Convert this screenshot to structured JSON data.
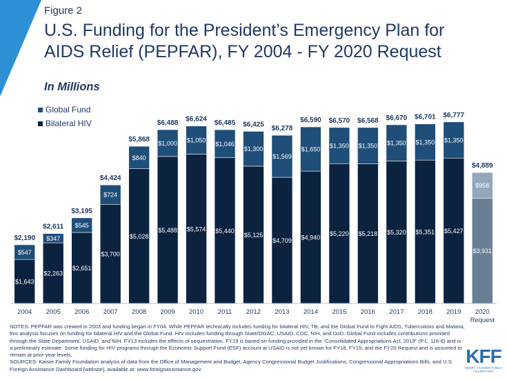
{
  "figure_label": "Figure 2",
  "title": "U.S. Funding for the President’s Emergency Plan for AIDS Relief (PEPFAR), FY 2004 - FY 2020 Request",
  "subtitle": "In Millions",
  "notes": "NOTES:  PEPFAR  was created in 2003 and funding began in FY04. While PEPFAR  technically includes funding for bilateral HIV, TB, and the Global Fund to Fight AIDS, Tuberculosis and Malaria, this analysis focuses on funding for bilateral HIV and the Global Fund. HIV includes funding through State/OGAC, USAID, CDC, NIH, and DoD. Global Fund includes contributions provided through the State Department, USAID, and NIH. FY13 includes the effects of sequestration. FY19 is based on funding provided in the “Consolidated Appropriations Act, 2019” (P.L. 116-6) and is a preliminary estimate. Some funding for HIV programs through the Economic Support Fund (ESF) account at USAID is not yet known for FY18, FY19, and the FY20 Request and is assumed to remain at prior year levels.",
  "sources": "SOURCES:  Kaiser Family Foundation analysis of data from the Office of Management and Budget, Agency Congressional Budget Justifications, Congressional Appropriations Bills, and U.S. Foreign Assistance Dashboard [website], available at: www.foreignassistance.gov.",
  "logo": {
    "mark": "KFF",
    "subtext": "HENRY J KAISER FAMILY FOUNDATION"
  },
  "colors": {
    "bilateral": "#0c2340",
    "global_fund": "#1f4e79",
    "request_bilateral": "#6a7f93",
    "request_global_fund": "#93a7bb",
    "axis": "#bfbfbf",
    "text": "#1f3864",
    "accent": "#2d8fd6"
  },
  "chart_data": {
    "type": "bar",
    "stacked": true,
    "categories": [
      "2004",
      "2005",
      "2006",
      "2007",
      "2008",
      "2009",
      "2010",
      "2011",
      "2012",
      "2013",
      "2014",
      "2015",
      "2016",
      "2017",
      "2018",
      "2019",
      "2020 Request"
    ],
    "series": [
      {
        "name": "Bilateral HIV",
        "values": [
          1643,
          2263,
          2651,
          3700,
          5028,
          5488,
          5574,
          5440,
          5125,
          4709,
          4940,
          5220,
          5218,
          5320,
          5351,
          5427,
          3931
        ],
        "labels": [
          "$1,643",
          "$2,263",
          "$2,651",
          "$3,700",
          "$5,028",
          "$5,488",
          "$5,574",
          "$5,440",
          "$5,125",
          "$4,709",
          "$4,940",
          "$5,220",
          "$5,218",
          "$5,320",
          "$5,351",
          "$5,427",
          "$3,931"
        ]
      },
      {
        "name": "Global Fund",
        "values": [
          547,
          347,
          545,
          724,
          840,
          1000,
          1050,
          1046,
          1300,
          1569,
          1650,
          1350,
          1350,
          1350,
          1350,
          1350,
          958
        ],
        "labels": [
          "$547",
          "$347",
          "$545",
          "$724",
          "$840",
          "$1,000",
          "$1,050",
          "$1,046",
          "$1,300",
          "$1,569",
          "$1,650",
          "$1,350",
          "$1,350",
          "$1,350",
          "$1,350",
          "$1,350",
          "$958"
        ]
      }
    ],
    "totals": [
      "$2,190",
      "$2,611",
      "$3,195",
      "$4,424",
      "$5,868",
      "$6,488",
      "$6,624",
      "$6,485",
      "$6,425",
      "$6,278",
      "$6,590",
      "$6,570",
      "$6,568",
      "$6,670",
      "$6,701",
      "$6,777",
      "$4,889"
    ],
    "legend_order": [
      "Global Fund",
      "Bilateral HIV"
    ],
    "legend_position": "top-left",
    "ylim": [
      0,
      7000
    ],
    "grid": false
  }
}
